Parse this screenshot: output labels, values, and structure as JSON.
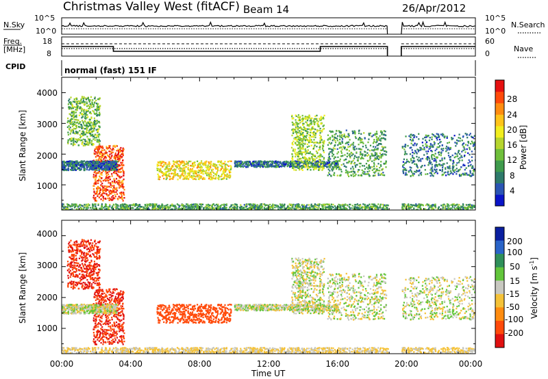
{
  "header": {
    "title": "Christmas Valley West (fitACF)",
    "beam": "Beam 14",
    "date": "26/Apr/2012"
  },
  "top_panels": {
    "nsky_label": "N.Sky",
    "nsky_ticks": [
      "10^5",
      "10^0"
    ],
    "nsearch_label": "N.Search",
    "nsearch_ticks": [
      "10^5",
      "10^0"
    ],
    "freq_label_1": "Freq.",
    "freq_label_2": "[MHz]",
    "freq_ticks": [
      "18",
      "8"
    ],
    "nave_label": "Nave",
    "nave_ticks": [
      "60",
      "0"
    ],
    "cpid_label": "CPID",
    "cpid_value": "normal (fast) 151 IF"
  },
  "colorbars": {
    "power": {
      "label": "Power [dB]",
      "ticks": [
        "28",
        "24",
        "20",
        "16",
        "12",
        "8",
        "4"
      ],
      "colors": [
        "#0a14c8",
        "#2b55b4",
        "#2e7a6b",
        "#3f9b4d",
        "#6fbf3b",
        "#b6d52e",
        "#f2ee1f",
        "#ffc41a",
        "#ff8c10",
        "#ff4a0a",
        "#e61010"
      ]
    },
    "velocity": {
      "label": "Velocity [m s",
      "label_exp": "-1",
      "label_end": "]",
      "ticks": [
        "200",
        "100",
        "50",
        "15",
        "-15",
        "-50",
        "-100",
        "-200"
      ],
      "colors": [
        "#0a1fa0",
        "#2a64c8",
        "#2f8f5a",
        "#62c53b",
        "#c8c8c0",
        "#f5c238",
        "#ff8c10",
        "#ff4a0a",
        "#e01010"
      ]
    }
  },
  "axes": {
    "ylabel": "Slant Range [km]",
    "yticks": [
      "4000",
      "3000",
      "2000",
      "1000"
    ],
    "xlabel": "Time UT",
    "xticks": [
      "00:00",
      "04:00",
      "08:00",
      "12:00",
      "16:00",
      "20:00",
      "00:00"
    ]
  },
  "chart_data": {
    "type": "heatmap",
    "x_units": "hours UT",
    "xlim": [
      0,
      24
    ],
    "ylim": [
      180,
      4500
    ],
    "data_gap_hours": [
      18.9,
      19.7
    ],
    "frequency_MHz": {
      "x": [
        0,
        3.0,
        3.0,
        15.0,
        15.0,
        18.9,
        19.7,
        24
      ],
      "y": [
        14,
        14,
        10.5,
        10.5,
        14,
        14,
        14,
        14
      ]
    },
    "echo_regions": [
      {
        "name": "A",
        "t": [
          0.3,
          2.2
        ],
        "range_km": [
          2300,
          3900
        ],
        "power_dB": 12,
        "velocity_ms": -200
      },
      {
        "name": "B",
        "t": [
          1.8,
          3.6
        ],
        "range_km": [
          500,
          2300
        ],
        "power_dB": 26,
        "velocity_ms": -200
      },
      {
        "name": "C",
        "t": [
          0,
          3.2
        ],
        "range_km": [
          1500,
          1800
        ],
        "power_dB": 6,
        "velocity_ms": 0
      },
      {
        "name": "D",
        "t": [
          5.5,
          9.8
        ],
        "range_km": [
          1200,
          1800
        ],
        "power_dB": 18,
        "velocity_ms": -150
      },
      {
        "name": "E",
        "t": [
          10.0,
          16.0
        ],
        "range_km": [
          1600,
          1800
        ],
        "power_dB": 6,
        "velocity_ms": 0
      },
      {
        "name": "F",
        "t": [
          13.3,
          15.2
        ],
        "range_km": [
          1500,
          3300
        ],
        "power_dB": 14,
        "velocity_ms": 0
      },
      {
        "name": "G",
        "t": [
          15.4,
          18.8
        ],
        "range_km": [
          1300,
          2800
        ],
        "power_dB": 10,
        "velocity_ms": 0
      },
      {
        "name": "H",
        "t": [
          19.7,
          24.0
        ],
        "range_km": [
          1300,
          2700
        ],
        "power_dB": 7,
        "velocity_ms": 0
      },
      {
        "name": "ground",
        "t": [
          0,
          24.0
        ],
        "range_km": [
          200,
          400
        ],
        "power_dB": 10,
        "velocity_ms": -20
      }
    ]
  }
}
